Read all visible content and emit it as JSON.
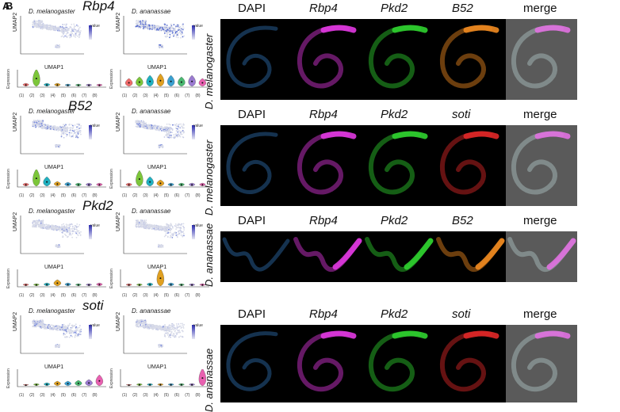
{
  "panel_letters": [
    "A",
    "B"
  ],
  "genes": [
    {
      "name": "Rbp4",
      "species": [
        "D. melanogaster",
        "D. ananassae"
      ]
    },
    {
      "name": "B52",
      "species": [
        "D. melanogaster",
        "D. ananassae"
      ]
    },
    {
      "name": "Pkd2",
      "species": [
        "D. melanogaster",
        "D. ananassae"
      ]
    },
    {
      "name": "soti",
      "species": [
        "D. melanogaster",
        "D. ananassae"
      ]
    }
  ],
  "umap": {
    "xlabel": "UMAP1",
    "ylabel": "UMAP2",
    "xticks": [
      "-5",
      "0",
      "5"
    ],
    "yticks": [
      "0",
      "-5",
      "-10"
    ],
    "legend_title": "value"
  },
  "violin": {
    "ylabel": "Expression",
    "clusters": [
      "(1)",
      "(2)",
      "(3)",
      "(4)",
      "(5)",
      "(6)",
      "(7)",
      "(8)"
    ]
  },
  "rows": [
    {
      "species": "D. melanogaster",
      "headers": [
        "DAPI",
        "Rbp4",
        "Pkd2",
        "B52",
        "merge"
      ]
    },
    {
      "species": "D. melanogaster",
      "headers": [
        "DAPI",
        "Rbp4",
        "Pkd2",
        "soti",
        "merge"
      ]
    },
    {
      "species": "D. ananassae",
      "headers": [
        "DAPI",
        "Rbp4",
        "Pkd2",
        "B52",
        "merge"
      ]
    },
    {
      "species": "D. ananassae",
      "headers": [
        "DAPI",
        "Rbp4",
        "Pkd2",
        "soti",
        "merge"
      ]
    }
  ],
  "channel_colors": {
    "DAPI": "#2f6fb0",
    "Rbp4": "#e038e0",
    "Pkd2": "#2fd02f",
    "B52": "#f08a20",
    "soti": "#e02828"
  }
}
